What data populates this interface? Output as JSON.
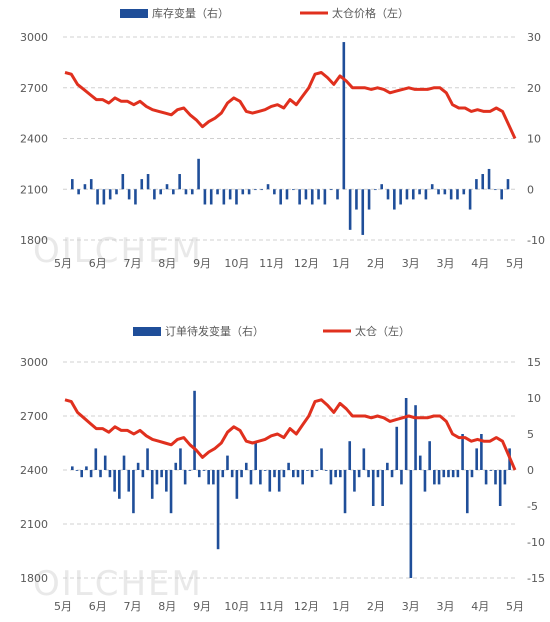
{
  "watermark": "OILCHEM",
  "chart_data": [
    {
      "type": "bar+line",
      "legend": [
        {
          "name": "库存变量（右）",
          "kind": "bar",
          "color": "#1f4e99"
        },
        {
          "name": "太仓价格（左）",
          "kind": "line",
          "color": "#e0301e"
        }
      ],
      "left_axis": {
        "min": 1800,
        "max": 3000,
        "ticks": [
          "1800",
          "2100",
          "2400",
          "2700",
          "3000"
        ]
      },
      "right_axis": {
        "min": -10,
        "max": 30,
        "ticks": [
          "-10",
          "0",
          "10",
          "20",
          "30"
        ]
      },
      "x_ticks": [
        "5月",
        "6月",
        "7月",
        "8月",
        "9月",
        "10月",
        "11月",
        "12月",
        "1月",
        "2月",
        "3月",
        "3月",
        "4月",
        "5月"
      ],
      "grid": true,
      "line_values": [
        2790,
        2780,
        2720,
        2690,
        2660,
        2630,
        2630,
        2610,
        2640,
        2620,
        2620,
        2600,
        2620,
        2590,
        2570,
        2560,
        2550,
        2540,
        2570,
        2580,
        2540,
        2510,
        2470,
        2500,
        2520,
        2550,
        2610,
        2640,
        2620,
        2560,
        2550,
        2560,
        2570,
        2590,
        2600,
        2580,
        2630,
        2600,
        2650,
        2700,
        2780,
        2790,
        2760,
        2720,
        2770,
        2740,
        2700,
        2700,
        2700,
        2690,
        2700,
        2690,
        2670,
        2680,
        2690,
        2700,
        2690,
        2690,
        2690,
        2700,
        2700,
        2670,
        2600,
        2580,
        2580,
        2560,
        2570,
        2560,
        2560,
        2580,
        2560,
        2480,
        2400
      ],
      "bar_values": [
        2,
        -1,
        1,
        2,
        -3,
        -3,
        -2,
        -1,
        3,
        -2,
        -3,
        2,
        3,
        -2,
        -1,
        1,
        -1,
        3,
        -1,
        -1,
        6,
        -3,
        -3,
        -1,
        -3,
        -2,
        -3,
        -1,
        -1,
        0,
        0,
        1,
        -1,
        -3,
        -2,
        0,
        -3,
        -2,
        -3,
        -2,
        -3,
        0,
        -2,
        29,
        -8,
        -4,
        -9,
        -4,
        0,
        1,
        -2,
        -4,
        -3,
        -2,
        -2,
        -1,
        -2,
        1,
        -1,
        -1,
        -2,
        -2,
        -1,
        -4,
        2,
        3,
        4,
        0,
        -2,
        2
      ],
      "title": "",
      "xlabel": "",
      "ylabel": ""
    },
    {
      "type": "bar+line",
      "legend": [
        {
          "name": "订单待发变量（右）",
          "kind": "bar",
          "color": "#1f4e99"
        },
        {
          "name": "太仓（左）",
          "kind": "line",
          "color": "#e0301e"
        }
      ],
      "left_axis": {
        "min": 1800,
        "max": 3000,
        "ticks": [
          "1800",
          "2100",
          "2400",
          "2700",
          "3000"
        ]
      },
      "right_axis": {
        "min": -15,
        "max": 15,
        "ticks": [
          "-15",
          "-10",
          "-5",
          "0",
          "5",
          "10",
          "15"
        ]
      },
      "x_ticks": [
        "5月",
        "6月",
        "7月",
        "8月",
        "9月",
        "10月",
        "11月",
        "12月",
        "1月",
        "2月",
        "3月",
        "3月",
        "4月",
        "5月"
      ],
      "grid": true,
      "line_values": [
        2790,
        2780,
        2720,
        2690,
        2660,
        2630,
        2630,
        2610,
        2640,
        2620,
        2620,
        2600,
        2620,
        2590,
        2570,
        2560,
        2550,
        2540,
        2570,
        2580,
        2540,
        2510,
        2470,
        2500,
        2520,
        2550,
        2610,
        2640,
        2620,
        2560,
        2550,
        2560,
        2570,
        2590,
        2600,
        2580,
        2630,
        2600,
        2650,
        2700,
        2780,
        2790,
        2760,
        2720,
        2770,
        2740,
        2700,
        2700,
        2700,
        2690,
        2700,
        2690,
        2670,
        2680,
        2690,
        2700,
        2690,
        2690,
        2690,
        2700,
        2700,
        2670,
        2600,
        2580,
        2580,
        2560,
        2570,
        2560,
        2560,
        2580,
        2560,
        2480,
        2400
      ],
      "bar_values": [
        0.5,
        0,
        -1,
        0.5,
        -1,
        3,
        -1,
        2,
        -1,
        -3,
        -4,
        2,
        -3,
        -6,
        1,
        -1,
        3,
        -4,
        -2,
        -1,
        -3,
        -6,
        1,
        3,
        -2,
        0,
        11,
        -1,
        0,
        -2,
        -2,
        -11,
        -1,
        2,
        -1,
        -4,
        -1,
        1,
        -2,
        4,
        -2,
        0,
        -3,
        -1,
        -3,
        -1,
        1,
        -1,
        -1,
        -2,
        0,
        -1,
        0,
        3,
        0,
        -2,
        -1,
        -1,
        -6,
        4,
        -3,
        -1,
        3,
        -1,
        -5,
        -1,
        -5,
        1,
        -1,
        6,
        -2,
        10,
        -15,
        9,
        2,
        -3,
        4,
        -2,
        -2,
        -1,
        -1,
        -1,
        -1,
        5,
        -6,
        -1,
        3,
        5,
        -2,
        0,
        -2,
        -5,
        -2,
        3
      ],
      "title": "",
      "xlabel": "",
      "ylabel": ""
    }
  ]
}
